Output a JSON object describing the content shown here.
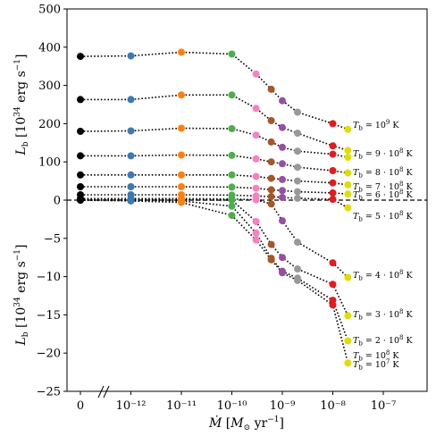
{
  "chart_data": {
    "type": "scatter",
    "x_ticks": [
      {
        "label": "0"
      },
      {
        "label": "10⁻¹²"
      },
      {
        "label": "10⁻¹¹"
      },
      {
        "label": "10⁻¹⁰"
      },
      {
        "label": "10⁻⁹"
      },
      {
        "label": "10⁻⁸"
      },
      {
        "label": "10⁻⁷"
      }
    ],
    "x_categories": [
      "0",
      "1e-12",
      "1e-11",
      "1e-10",
      "3e-10",
      "6e-10",
      "1e-9",
      "2e-9",
      "1e-8",
      "2e-8"
    ],
    "x_log_positions": [
      null,
      -12,
      -11,
      -10,
      -9.52,
      -9.22,
      -9.0,
      -8.7,
      -8.0,
      -7.7
    ],
    "marker_colors": [
      "#000000",
      "#3a79b5",
      "#ff7f0e",
      "#4daf4a",
      "#f781bf",
      "#a65628",
      "#984ea3",
      "#999999",
      "#e41a1c",
      "#dede00"
    ],
    "ylim": [
      -25,
      500
    ],
    "y_ticks": [
      {
        "label": "500",
        "value": 500
      },
      {
        "label": "400",
        "value": 400
      },
      {
        "label": "300",
        "value": 300
      },
      {
        "label": "200",
        "value": 200
      },
      {
        "label": "100",
        "value": 100
      },
      {
        "label": "0",
        "value": 0
      },
      {
        "label": "−5",
        "value": -5
      },
      {
        "label": "−10",
        "value": -10
      },
      {
        "label": "−15",
        "value": -15
      },
      {
        "label": "−20",
        "value": -20
      },
      {
        "label": "−25",
        "value": -25
      }
    ],
    "ylabel_top": "L_b [10^34 erg s^-1]",
    "ylabel_bottom": "L_b [10^34 erg s^-1]",
    "xlabel": "M_dot [M_sun yr^-1]",
    "series": [
      {
        "name": "T_b = 10^9 K",
        "label": "Tₕ = 10⁹ K",
        "values": [
          376,
          377,
          387,
          382,
          330,
          290,
          260,
          230,
          200,
          185
        ]
      },
      {
        "name": "T_b = 9·10^8 K",
        "values": [
          263,
          263,
          275,
          275,
          240,
          208,
          190,
          175,
          142,
          130
        ]
      },
      {
        "name": "T_b = 8·10^8 K",
        "values": [
          180,
          181,
          188,
          187,
          170,
          152,
          138,
          128,
          120,
          112
        ]
      },
      {
        "name": "T_b = 7·10^8 K",
        "values": [
          116,
          116,
          118,
          117,
          108,
          100,
          95,
          86,
          77,
          71
        ]
      },
      {
        "name": "T_b = 6·10^8 K",
        "values": [
          66,
          66,
          66,
          66,
          62,
          57,
          54,
          50,
          45,
          40
        ]
      },
      {
        "name": "T_b = 5·10^8 K",
        "values": [
          35,
          35,
          35,
          34,
          31,
          27,
          25,
          22,
          19,
          16
        ]
      },
      {
        "name": "T_b = 4·10^8 K",
        "values": [
          14,
          14,
          14,
          13,
          11,
          9,
          7,
          5,
          2,
          -1
        ]
      },
      {
        "name": "T_b = 3·10^8 K",
        "values": [
          4,
          4,
          4,
          3,
          1,
          -0.5,
          -2.7,
          -5.5,
          -8.2,
          -10.1
        ]
      },
      {
        "name": "T_b = 2·10^8 K",
        "values": [
          1.2,
          1.2,
          0.8,
          0.0,
          -2.8,
          -5.8,
          -7.5,
          -9.0,
          -11.0,
          -15.1
        ]
      },
      {
        "name": "T_b = 10^8 K",
        "values": [
          0.1,
          0.1,
          -0.1,
          -0.8,
          -4.3,
          -7.6,
          -9.3,
          -10.2,
          -13.1,
          -18.4
        ]
      },
      {
        "name": "T_b = 10^7 K",
        "values": [
          0.0,
          -0.1,
          -0.3,
          -2.0,
          -5.2,
          -7.8,
          -9.5,
          -10.5,
          -13.7,
          -21.3
        ]
      }
    ],
    "series_labels": [
      "T_b = 10^9 K",
      "T_b = 9·10^8 K",
      "T_b = 8·10^8 K",
      "T_b = 7·10^8 K",
      "T_b = 6·10^8 K",
      "T_b = 5·10^8 K",
      "T_b = 4·10^8 K",
      "T_b = 3·10^8 K",
      "T_b = 2·10^8 K",
      "T_b = 10^8 K",
      "T_b = 10^7 K"
    ],
    "zero_line": "dashed",
    "grid": false
  }
}
